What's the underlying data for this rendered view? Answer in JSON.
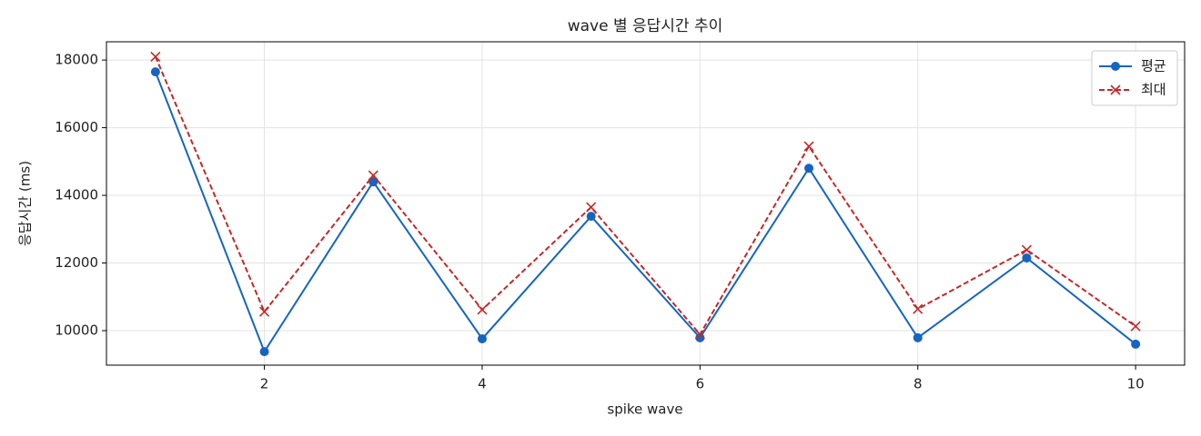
{
  "chart_data": {
    "type": "line",
    "title": "wave 별 응답시간 추이",
    "x_label": "spike wave",
    "y_label": "응답시간 (ms)",
    "x": [
      1,
      2,
      3,
      4,
      5,
      6,
      7,
      8,
      9,
      10
    ],
    "series": [
      {
        "name": "평균",
        "color": "#1565c0",
        "linestyle": "solid",
        "marker": "circle",
        "values": [
          17650,
          9380,
          14400,
          9760,
          13380,
          9790,
          14800,
          9790,
          12150,
          9600
        ]
      },
      {
        "name": "최대",
        "color": "#c62828",
        "linestyle": "dashed",
        "marker": "x",
        "values": [
          18100,
          10560,
          14590,
          10620,
          13650,
          9890,
          15450,
          10640,
          12390,
          10130
        ]
      }
    ],
    "xlim": [
      0.55,
      10.45
    ],
    "xticks": [
      2,
      4,
      6,
      8,
      10
    ],
    "ylim": [
      8980,
      18540
    ],
    "yticks": [
      10000,
      12000,
      14000,
      16000,
      18000
    ],
    "grid": true,
    "legend": "upper right"
  }
}
